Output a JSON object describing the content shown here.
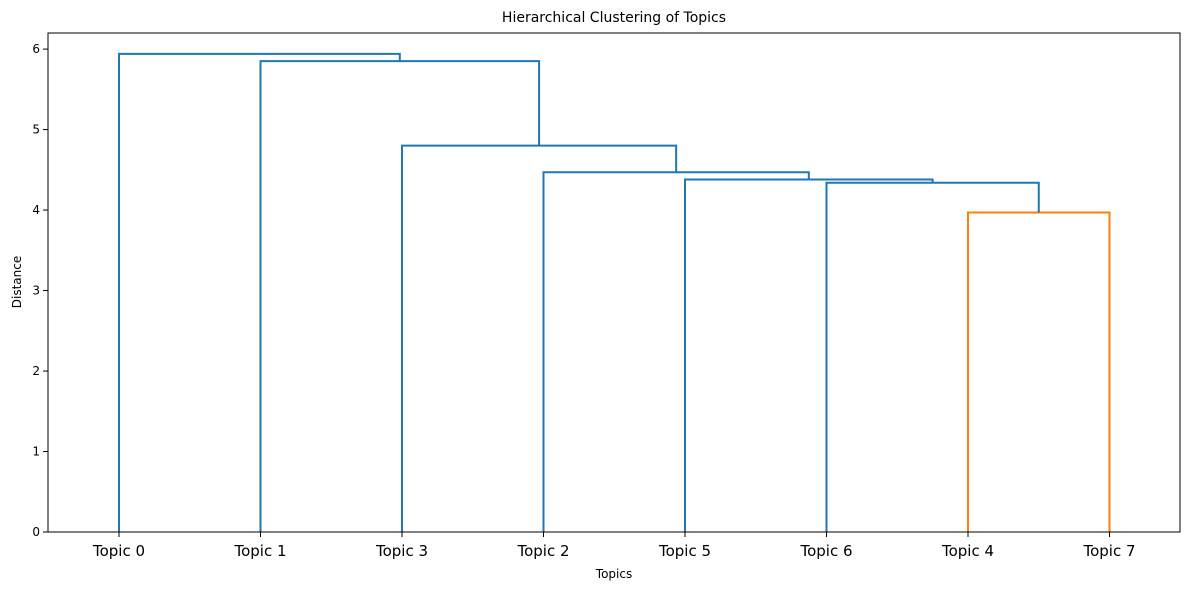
{
  "chart_data": {
    "type": "dendrogram",
    "title": "Hierarchical Clustering of Topics",
    "xlabel": "Topics",
    "ylabel": "Distance",
    "ylim": [
      0,
      6.2
    ],
    "yticks": [
      "0",
      "1",
      "2",
      "3",
      "4",
      "5",
      "6"
    ],
    "leaves": [
      "Topic 0",
      "Topic 1",
      "Topic 3",
      "Topic 2",
      "Topic 5",
      "Topic 6",
      "Topic 4",
      "Topic 7"
    ],
    "colors": {
      "above_threshold": "#1f77b4",
      "cluster_1": "#ff7f0e"
    },
    "merges": [
      {
        "left": "Topic 4",
        "right": "Topic 7",
        "distance": 3.97,
        "color": "#ff7f0e"
      },
      {
        "left": "Topic 6",
        "right": "[Topic 4, Topic 7]",
        "distance": 4.34,
        "color": "#1f77b4"
      },
      {
        "left": "Topic 5",
        "right": "[Topic 6, Topic 4, Topic 7]",
        "distance": 4.38,
        "color": "#1f77b4"
      },
      {
        "left": "Topic 2",
        "right": "[Topic 5, Topic 6, Topic 4, Topic 7]",
        "distance": 4.47,
        "color": "#1f77b4"
      },
      {
        "left": "Topic 3",
        "right": "[Topic 2, Topic 5, Topic 6, Topic 4, Topic 7]",
        "distance": 4.8,
        "color": "#1f77b4"
      },
      {
        "left": "Topic 1",
        "right": "[Topic 3, Topic 2, Topic 5, Topic 6, Topic 4, Topic 7]",
        "distance": 5.85,
        "color": "#1f77b4"
      },
      {
        "left": "Topic 0",
        "right": "[Topic 1, Topic 3, Topic 2, Topic 5, Topic 6, Topic 4, Topic 7]",
        "distance": 5.94,
        "color": "#1f77b4"
      }
    ]
  }
}
